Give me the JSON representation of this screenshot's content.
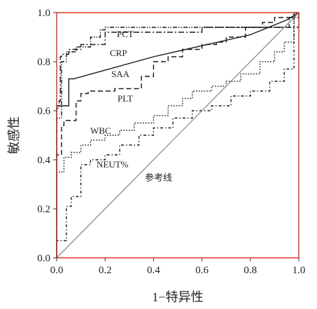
{
  "chart_data": {
    "type": "line",
    "xlabel": "1−特异性",
    "ylabel": "敏感性",
    "xlim": [
      0,
      1
    ],
    "ylim": [
      0,
      1
    ],
    "xticks": [
      "0.0",
      "0.2",
      "0.4",
      "0.6",
      "0.8",
      "1.0"
    ],
    "yticks": [
      "0.0",
      "0.2",
      "0.4",
      "0.6",
      "0.8",
      "1.0"
    ],
    "grid": false,
    "frame_color": "#e0392b",
    "reference_line": {
      "label": "参考线",
      "color": "#8c8c8c",
      "points": [
        [
          0,
          0
        ],
        [
          1,
          1
        ]
      ]
    },
    "series": [
      {
        "name": "PCT",
        "style": "dash-dot",
        "points": [
          [
            0,
            0
          ],
          [
            0,
            0.61
          ],
          [
            0.01,
            0.61
          ],
          [
            0.01,
            0.64
          ],
          [
            0.015,
            0.64
          ],
          [
            0.015,
            0.82
          ],
          [
            0.02,
            0.82
          ],
          [
            0.02,
            0.83
          ],
          [
            0.05,
            0.83
          ],
          [
            0.05,
            0.85
          ],
          [
            0.1,
            0.85
          ],
          [
            0.1,
            0.87
          ],
          [
            0.2,
            0.87
          ],
          [
            0.2,
            0.92
          ],
          [
            0.6,
            0.92
          ],
          [
            0.6,
            0.94
          ],
          [
            1,
            0.94
          ],
          [
            1,
            1
          ]
        ]
      },
      {
        "name": "CRP",
        "style": "dash-dot-dot",
        "points": [
          [
            0,
            0
          ],
          [
            0,
            0.57
          ],
          [
            0.02,
            0.57
          ],
          [
            0.02,
            0.8
          ],
          [
            0.04,
            0.8
          ],
          [
            0.04,
            0.84
          ],
          [
            0.08,
            0.84
          ],
          [
            0.08,
            0.86
          ],
          [
            0.14,
            0.86
          ],
          [
            0.14,
            0.9
          ],
          [
            0.18,
            0.9
          ],
          [
            0.18,
            0.93
          ],
          [
            0.2,
            0.93
          ],
          [
            0.2,
            0.94
          ],
          [
            0.96,
            0.94
          ],
          [
            0.96,
            0.98
          ],
          [
            1,
            0.98
          ],
          [
            1,
            1
          ]
        ]
      },
      {
        "name": "SAA",
        "style": "solid",
        "points": [
          [
            0,
            0
          ],
          [
            0,
            0.62
          ],
          [
            0.05,
            0.62
          ],
          [
            0.05,
            0.73
          ],
          [
            0.07,
            0.73
          ],
          [
            0.4,
            0.82
          ],
          [
            0.8,
            0.91
          ],
          [
            0.95,
            0.97
          ],
          [
            1,
            1
          ]
        ]
      },
      {
        "name": "PLT",
        "style": "dashed",
        "points": [
          [
            0,
            0
          ],
          [
            0,
            0.42
          ],
          [
            0.02,
            0.42
          ],
          [
            0.02,
            0.54
          ],
          [
            0.03,
            0.54
          ],
          [
            0.03,
            0.56
          ],
          [
            0.08,
            0.56
          ],
          [
            0.08,
            0.64
          ],
          [
            0.1,
            0.64
          ],
          [
            0.1,
            0.67
          ],
          [
            0.13,
            0.67
          ],
          [
            0.13,
            0.68
          ],
          [
            0.24,
            0.68
          ],
          [
            0.24,
            0.69
          ],
          [
            0.35,
            0.69
          ],
          [
            0.35,
            0.74
          ],
          [
            0.4,
            0.74
          ],
          [
            0.4,
            0.8
          ],
          [
            0.46,
            0.8
          ],
          [
            0.46,
            0.82
          ],
          [
            0.52,
            0.82
          ],
          [
            0.52,
            0.85
          ],
          [
            0.6,
            0.85
          ],
          [
            0.6,
            0.87
          ],
          [
            0.66,
            0.87
          ],
          [
            0.66,
            0.88
          ],
          [
            0.7,
            0.88
          ],
          [
            0.7,
            0.9
          ],
          [
            0.78,
            0.9
          ],
          [
            0.78,
            0.94
          ],
          [
            0.85,
            0.94
          ],
          [
            0.85,
            0.96
          ],
          [
            0.9,
            0.96
          ],
          [
            0.9,
            0.98
          ],
          [
            0.98,
            0.98
          ],
          [
            0.98,
            1
          ],
          [
            1,
            1
          ]
        ]
      },
      {
        "name": "WBC",
        "style": "dotted",
        "points": [
          [
            0,
            0
          ],
          [
            0,
            0.35
          ],
          [
            0.03,
            0.35
          ],
          [
            0.03,
            0.41
          ],
          [
            0.06,
            0.41
          ],
          [
            0.06,
            0.43
          ],
          [
            0.1,
            0.43
          ],
          [
            0.1,
            0.46
          ],
          [
            0.14,
            0.46
          ],
          [
            0.14,
            0.48
          ],
          [
            0.2,
            0.48
          ],
          [
            0.2,
            0.5
          ],
          [
            0.26,
            0.5
          ],
          [
            0.26,
            0.52
          ],
          [
            0.32,
            0.52
          ],
          [
            0.32,
            0.55
          ],
          [
            0.4,
            0.55
          ],
          [
            0.4,
            0.58
          ],
          [
            0.46,
            0.58
          ],
          [
            0.46,
            0.62
          ],
          [
            0.52,
            0.62
          ],
          [
            0.52,
            0.65
          ],
          [
            0.56,
            0.65
          ],
          [
            0.56,
            0.68
          ],
          [
            0.64,
            0.68
          ],
          [
            0.64,
            0.7
          ],
          [
            0.7,
            0.7
          ],
          [
            0.7,
            0.72
          ],
          [
            0.76,
            0.72
          ],
          [
            0.76,
            0.75
          ],
          [
            0.84,
            0.75
          ],
          [
            0.84,
            0.8
          ],
          [
            0.9,
            0.8
          ],
          [
            0.9,
            0.84
          ],
          [
            0.94,
            0.84
          ],
          [
            0.94,
            0.88
          ],
          [
            0.98,
            0.88
          ],
          [
            0.98,
            1
          ],
          [
            1,
            1
          ]
        ]
      },
      {
        "name": "NEUT%",
        "style": "dash-dot-sparse",
        "points": [
          [
            0,
            0
          ],
          [
            0,
            0.07
          ],
          [
            0.04,
            0.07
          ],
          [
            0.04,
            0.21
          ],
          [
            0.06,
            0.21
          ],
          [
            0.06,
            0.25
          ],
          [
            0.1,
            0.25
          ],
          [
            0.1,
            0.38
          ],
          [
            0.14,
            0.38
          ],
          [
            0.14,
            0.4
          ],
          [
            0.2,
            0.4
          ],
          [
            0.2,
            0.42
          ],
          [
            0.26,
            0.42
          ],
          [
            0.26,
            0.46
          ],
          [
            0.34,
            0.46
          ],
          [
            0.34,
            0.5
          ],
          [
            0.4,
            0.5
          ],
          [
            0.4,
            0.53
          ],
          [
            0.48,
            0.53
          ],
          [
            0.48,
            0.57
          ],
          [
            0.56,
            0.57
          ],
          [
            0.56,
            0.6
          ],
          [
            0.64,
            0.6
          ],
          [
            0.64,
            0.62
          ],
          [
            0.72,
            0.62
          ],
          [
            0.72,
            0.66
          ],
          [
            0.8,
            0.66
          ],
          [
            0.8,
            0.68
          ],
          [
            0.88,
            0.68
          ],
          [
            0.88,
            0.72
          ],
          [
            0.94,
            0.72
          ],
          [
            0.94,
            0.77
          ],
          [
            0.98,
            0.77
          ],
          [
            0.98,
            1
          ],
          [
            1,
            1
          ]
        ]
      }
    ]
  }
}
